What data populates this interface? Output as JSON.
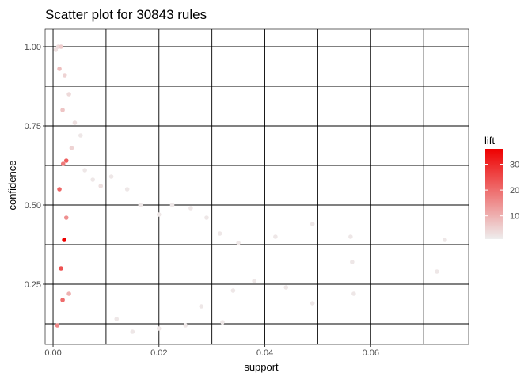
{
  "chart_data": {
    "type": "scatter",
    "title": "Scatter plot for 30843 rules",
    "xlabel": "support",
    "ylabel": "confidence",
    "xlim": [
      -0.0015,
      0.0785
    ],
    "ylim": [
      0.06,
      1.055
    ],
    "x_ticks": [
      0.0,
      0.02,
      0.04,
      0.06
    ],
    "x_tick_labels": [
      "0.00",
      "0.02",
      "0.04",
      "0.06"
    ],
    "y_ticks": [
      0.25,
      0.5,
      0.75,
      1.0
    ],
    "y_tick_labels": [
      "0.25",
      "0.50",
      "0.75",
      "1.00"
    ],
    "grid": true,
    "color_scale": {
      "name": "lift",
      "min": 1,
      "max": 36,
      "ticks": [
        10,
        20,
        30
      ],
      "tick_labels": [
        "10",
        "20",
        "30"
      ],
      "low_color": "#eeeeee",
      "high_color": "#ee0000"
    },
    "legend_position": "right",
    "points": [
      [
        0.001,
        1.0,
        4
      ],
      [
        0.0015,
        1.0,
        6
      ],
      [
        0.0005,
        0.99,
        3
      ],
      [
        0.0012,
        0.93,
        8
      ],
      [
        0.0022,
        0.91,
        5
      ],
      [
        0.003,
        0.85,
        4
      ],
      [
        0.0018,
        0.8,
        7
      ],
      [
        0.0041,
        0.76,
        3
      ],
      [
        0.0052,
        0.72,
        2
      ],
      [
        0.0035,
        0.68,
        5
      ],
      [
        0.0025,
        0.64,
        22
      ],
      [
        0.0019,
        0.63,
        18
      ],
      [
        0.006,
        0.61,
        2
      ],
      [
        0.0075,
        0.58,
        2
      ],
      [
        0.009,
        0.56,
        3
      ],
      [
        0.011,
        0.59,
        2
      ],
      [
        0.014,
        0.55,
        2
      ],
      [
        0.0165,
        0.5,
        2
      ],
      [
        0.02,
        0.47,
        2
      ],
      [
        0.0225,
        0.5,
        2
      ],
      [
        0.026,
        0.49,
        2
      ],
      [
        0.029,
        0.46,
        2
      ],
      [
        0.0315,
        0.41,
        2
      ],
      [
        0.035,
        0.38,
        2
      ],
      [
        0.042,
        0.4,
        2
      ],
      [
        0.049,
        0.44,
        2
      ],
      [
        0.0562,
        0.4,
        2
      ],
      [
        0.0565,
        0.32,
        2
      ],
      [
        0.0568,
        0.22,
        2
      ],
      [
        0.074,
        0.39,
        2
      ],
      [
        0.0725,
        0.29,
        2
      ],
      [
        0.049,
        0.19,
        2
      ],
      [
        0.044,
        0.24,
        2
      ],
      [
        0.038,
        0.26,
        2
      ],
      [
        0.034,
        0.23,
        2
      ],
      [
        0.028,
        0.18,
        2
      ],
      [
        0.032,
        0.13,
        2
      ],
      [
        0.025,
        0.12,
        2
      ],
      [
        0.02,
        0.11,
        2
      ],
      [
        0.015,
        0.1,
        2
      ],
      [
        0.012,
        0.14,
        2
      ],
      [
        0.0021,
        0.39,
        36
      ],
      [
        0.0015,
        0.3,
        24
      ],
      [
        0.0018,
        0.2,
        20
      ],
      [
        0.0012,
        0.55,
        21
      ],
      [
        0.0025,
        0.46,
        15
      ],
      [
        0.003,
        0.22,
        10
      ],
      [
        0.0008,
        0.12,
        16
      ]
    ]
  }
}
